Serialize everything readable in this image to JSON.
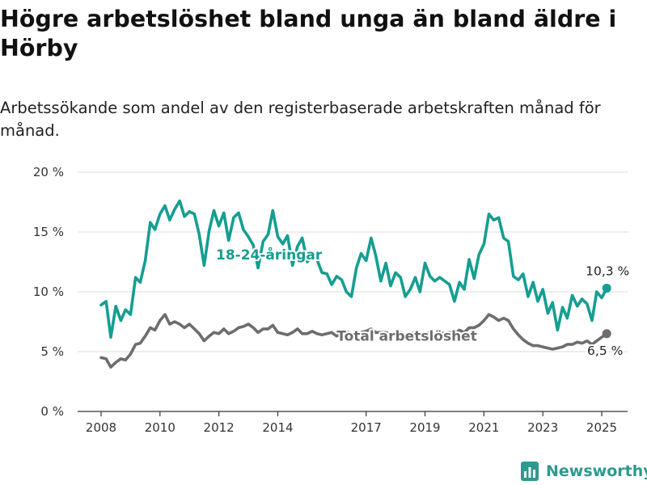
{
  "title": "Högre arbetslöshet bland unga än bland äldre i Hörby",
  "subtitle": "Arbetssökande som andel av den registerbaserade arbetskraften månad för månad.",
  "brand": {
    "name": "Newsworthy"
  },
  "colors": {
    "youth": "#159e91",
    "total": "#6d6d6d",
    "grid": "#e2e2e2"
  },
  "chart_data": {
    "type": "line",
    "y_ticks": [
      "0 %",
      "5 %",
      "10 %",
      "15 %",
      "20 %"
    ],
    "x_ticks": [
      "2008",
      "2010",
      "2012",
      "2014",
      "2017",
      "2019",
      "2021",
      "2023",
      "2025"
    ],
    "ylim": [
      0,
      20
    ],
    "xlim": [
      2007.5,
      2026.0
    ],
    "grid": true,
    "series": [
      {
        "name": "18-24-åringar",
        "label": "18-24-åringar",
        "end_label": "10,3 %",
        "color": "#159e91",
        "points": [
          [
            2008.0,
            8.9
          ],
          [
            2008.17,
            9.2
          ],
          [
            2008.33,
            6.2
          ],
          [
            2008.5,
            8.8
          ],
          [
            2008.67,
            7.6
          ],
          [
            2008.83,
            8.5
          ],
          [
            2009.0,
            8.1
          ],
          [
            2009.17,
            11.2
          ],
          [
            2009.33,
            10.8
          ],
          [
            2009.5,
            12.6
          ],
          [
            2009.67,
            15.8
          ],
          [
            2009.83,
            15.2
          ],
          [
            2010.0,
            16.5
          ],
          [
            2010.17,
            17.2
          ],
          [
            2010.33,
            16.0
          ],
          [
            2010.5,
            16.9
          ],
          [
            2010.67,
            17.6
          ],
          [
            2010.83,
            16.3
          ],
          [
            2011.0,
            16.7
          ],
          [
            2011.17,
            16.5
          ],
          [
            2011.33,
            14.8
          ],
          [
            2011.5,
            12.2
          ],
          [
            2011.67,
            15.1
          ],
          [
            2011.83,
            16.8
          ],
          [
            2012.0,
            15.5
          ],
          [
            2012.17,
            16.6
          ],
          [
            2012.33,
            14.3
          ],
          [
            2012.5,
            16.2
          ],
          [
            2012.67,
            16.6
          ],
          [
            2012.83,
            15.2
          ],
          [
            2013.0,
            14.6
          ],
          [
            2013.17,
            13.9
          ],
          [
            2013.33,
            12.0
          ],
          [
            2013.5,
            14.2
          ],
          [
            2013.67,
            14.8
          ],
          [
            2013.83,
            16.8
          ],
          [
            2014.0,
            14.6
          ],
          [
            2014.17,
            14.0
          ],
          [
            2014.33,
            14.7
          ],
          [
            2014.5,
            12.2
          ],
          [
            2014.67,
            13.8
          ],
          [
            2014.83,
            14.5
          ],
          [
            2015.0,
            12.5
          ],
          [
            2015.17,
            13.0
          ],
          [
            2015.33,
            12.7
          ],
          [
            2015.5,
            11.6
          ],
          [
            2015.67,
            11.5
          ],
          [
            2015.83,
            10.6
          ],
          [
            2016.0,
            11.3
          ],
          [
            2016.17,
            11.0
          ],
          [
            2016.33,
            10.0
          ],
          [
            2016.5,
            9.6
          ],
          [
            2016.67,
            12.0
          ],
          [
            2016.83,
            13.2
          ],
          [
            2017.0,
            12.6
          ],
          [
            2017.17,
            14.5
          ],
          [
            2017.33,
            13.0
          ],
          [
            2017.5,
            10.9
          ],
          [
            2017.67,
            12.4
          ],
          [
            2017.83,
            10.5
          ],
          [
            2018.0,
            11.6
          ],
          [
            2018.17,
            11.2
          ],
          [
            2018.33,
            9.6
          ],
          [
            2018.5,
            10.2
          ],
          [
            2018.67,
            11.2
          ],
          [
            2018.83,
            10.0
          ],
          [
            2019.0,
            12.4
          ],
          [
            2019.17,
            11.3
          ],
          [
            2019.33,
            10.9
          ],
          [
            2019.5,
            11.2
          ],
          [
            2019.67,
            10.9
          ],
          [
            2019.83,
            10.6
          ],
          [
            2020.0,
            9.2
          ],
          [
            2020.17,
            10.8
          ],
          [
            2020.33,
            10.2
          ],
          [
            2020.5,
            12.7
          ],
          [
            2020.67,
            11.1
          ],
          [
            2020.83,
            13.1
          ],
          [
            2021.0,
            14.0
          ],
          [
            2021.17,
            16.5
          ],
          [
            2021.33,
            16.0
          ],
          [
            2021.5,
            16.2
          ],
          [
            2021.67,
            14.5
          ],
          [
            2021.83,
            14.2
          ],
          [
            2022.0,
            11.3
          ],
          [
            2022.17,
            11.0
          ],
          [
            2022.33,
            11.5
          ],
          [
            2022.5,
            9.6
          ],
          [
            2022.67,
            10.8
          ],
          [
            2022.83,
            9.2
          ],
          [
            2023.0,
            10.2
          ],
          [
            2023.17,
            8.2
          ],
          [
            2023.33,
            9.1
          ],
          [
            2023.5,
            6.8
          ],
          [
            2023.67,
            8.7
          ],
          [
            2023.83,
            7.8
          ],
          [
            2024.0,
            9.7
          ],
          [
            2024.17,
            8.8
          ],
          [
            2024.33,
            9.4
          ],
          [
            2024.5,
            9.0
          ],
          [
            2024.67,
            7.6
          ],
          [
            2024.83,
            10.0
          ],
          [
            2025.0,
            9.5
          ],
          [
            2025.17,
            10.3
          ]
        ]
      },
      {
        "name": "Total arbetslöshet",
        "label": "Total arbetslöshet",
        "end_label": "6,5 %",
        "color": "#6d6d6d",
        "points": [
          [
            2008.0,
            4.5
          ],
          [
            2008.17,
            4.4
          ],
          [
            2008.33,
            3.7
          ],
          [
            2008.5,
            4.1
          ],
          [
            2008.67,
            4.4
          ],
          [
            2008.83,
            4.3
          ],
          [
            2009.0,
            4.8
          ],
          [
            2009.17,
            5.6
          ],
          [
            2009.33,
            5.7
          ],
          [
            2009.5,
            6.3
          ],
          [
            2009.67,
            7.0
          ],
          [
            2009.83,
            6.8
          ],
          [
            2010.0,
            7.6
          ],
          [
            2010.17,
            8.1
          ],
          [
            2010.33,
            7.3
          ],
          [
            2010.5,
            7.5
          ],
          [
            2010.67,
            7.3
          ],
          [
            2010.83,
            7.0
          ],
          [
            2011.0,
            7.3
          ],
          [
            2011.17,
            6.9
          ],
          [
            2011.33,
            6.5
          ],
          [
            2011.5,
            5.9
          ],
          [
            2011.67,
            6.3
          ],
          [
            2011.83,
            6.6
          ],
          [
            2012.0,
            6.5
          ],
          [
            2012.17,
            6.9
          ],
          [
            2012.33,
            6.5
          ],
          [
            2012.5,
            6.7
          ],
          [
            2012.67,
            7.0
          ],
          [
            2012.83,
            7.1
          ],
          [
            2013.0,
            7.3
          ],
          [
            2013.17,
            7.0
          ],
          [
            2013.33,
            6.6
          ],
          [
            2013.5,
            6.9
          ],
          [
            2013.67,
            6.9
          ],
          [
            2013.83,
            7.2
          ],
          [
            2014.0,
            6.6
          ],
          [
            2014.17,
            6.5
          ],
          [
            2014.33,
            6.4
          ],
          [
            2014.5,
            6.6
          ],
          [
            2014.67,
            6.9
          ],
          [
            2014.83,
            6.5
          ],
          [
            2015.0,
            6.5
          ],
          [
            2015.17,
            6.7
          ],
          [
            2015.33,
            6.5
          ],
          [
            2015.5,
            6.4
          ],
          [
            2015.67,
            6.5
          ],
          [
            2015.83,
            6.6
          ],
          [
            2016.0,
            6.3
          ],
          [
            2016.17,
            6.5
          ],
          [
            2016.33,
            6.7
          ],
          [
            2016.5,
            6.4
          ],
          [
            2016.67,
            6.3
          ],
          [
            2016.83,
            6.6
          ],
          [
            2017.0,
            6.7
          ],
          [
            2017.17,
            6.9
          ],
          [
            2017.33,
            6.6
          ],
          [
            2017.5,
            6.6
          ],
          [
            2017.67,
            6.6
          ],
          [
            2017.83,
            6.5
          ],
          [
            2018.0,
            6.4
          ],
          [
            2018.17,
            6.6
          ],
          [
            2018.33,
            6.4
          ],
          [
            2018.5,
            6.5
          ],
          [
            2018.67,
            6.6
          ],
          [
            2018.83,
            6.5
          ],
          [
            2019.0,
            6.5
          ],
          [
            2019.17,
            6.6
          ],
          [
            2019.33,
            6.4
          ],
          [
            2019.5,
            6.6
          ],
          [
            2019.67,
            6.5
          ],
          [
            2019.83,
            6.6
          ],
          [
            2020.0,
            6.5
          ],
          [
            2020.17,
            6.8
          ],
          [
            2020.33,
            6.6
          ],
          [
            2020.5,
            7.0
          ],
          [
            2020.67,
            7.0
          ],
          [
            2020.83,
            7.2
          ],
          [
            2021.0,
            7.6
          ],
          [
            2021.17,
            8.1
          ],
          [
            2021.33,
            7.9
          ],
          [
            2021.5,
            7.6
          ],
          [
            2021.67,
            7.8
          ],
          [
            2021.83,
            7.6
          ],
          [
            2022.0,
            6.9
          ],
          [
            2022.17,
            6.4
          ],
          [
            2022.33,
            6.0
          ],
          [
            2022.5,
            5.7
          ],
          [
            2022.67,
            5.5
          ],
          [
            2022.83,
            5.5
          ],
          [
            2023.0,
            5.4
          ],
          [
            2023.17,
            5.3
          ],
          [
            2023.33,
            5.2
          ],
          [
            2023.5,
            5.3
          ],
          [
            2023.67,
            5.4
          ],
          [
            2023.83,
            5.6
          ],
          [
            2024.0,
            5.6
          ],
          [
            2024.17,
            5.8
          ],
          [
            2024.33,
            5.7
          ],
          [
            2024.5,
            5.9
          ],
          [
            2024.67,
            5.6
          ],
          [
            2024.83,
            5.9
          ],
          [
            2025.0,
            6.2
          ],
          [
            2025.17,
            6.5
          ]
        ]
      }
    ]
  }
}
